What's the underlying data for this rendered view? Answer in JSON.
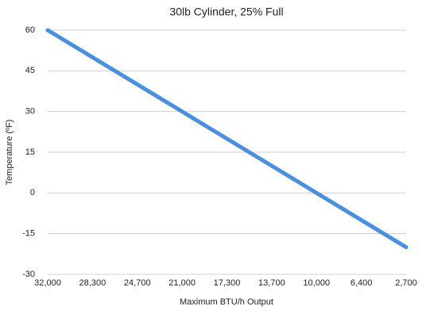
{
  "chart_data": {
    "type": "line",
    "title": "30lb Cylinder, 25% Full",
    "x_label": "Maximum BTU/h Output",
    "y_label": "Temperature (ºF)",
    "categories": [
      "32,000",
      "28,300",
      "24,700",
      "21,000",
      "17,300",
      "13,700",
      "10,000",
      "6,400",
      "2,700"
    ],
    "series": [
      {
        "name": "Temperature",
        "color": "#4a90e2",
        "values": [
          60,
          50,
          40,
          30,
          20,
          10,
          0,
          -10,
          -20
        ]
      }
    ],
    "ylim": [
      -30,
      60
    ],
    "yticks": [
      -30,
      -15,
      0,
      15,
      30,
      45,
      60
    ],
    "grid": true
  }
}
